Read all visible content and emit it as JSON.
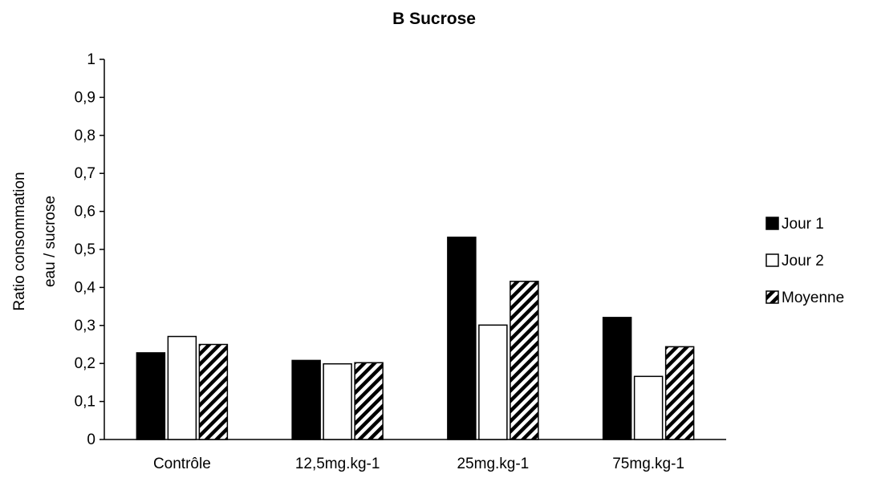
{
  "chart_data": {
    "type": "bar",
    "title": "B Sucrose",
    "ylabel_lines": [
      "Ratio consommation",
      "eau / sucrose"
    ],
    "xlabel": "",
    "categories": [
      "Contrôle",
      "12,5mg.kg-1",
      "25mg.kg-1",
      "75mg.kg-1"
    ],
    "series": [
      {
        "name": "Jour 1",
        "values": [
          0.228,
          0.208,
          0.532,
          0.321
        ],
        "fill": "solid",
        "color": "#000000"
      },
      {
        "name": "Jour 2",
        "values": [
          0.271,
          0.199,
          0.301,
          0.166
        ],
        "fill": "empty",
        "color": "#ffffff"
      },
      {
        "name": "Moyenne",
        "values": [
          0.25,
          0.202,
          0.416,
          0.244
        ],
        "fill": "hatched",
        "color": "#000000"
      }
    ],
    "ylim": [
      0,
      1
    ],
    "yticks": [
      "0",
      "0,1",
      "0,2",
      "0,3",
      "0,4",
      "0,5",
      "0,6",
      "0,7",
      "0,8",
      "0,9",
      "1"
    ],
    "ytick_values": [
      0,
      0.1,
      0.2,
      0.3,
      0.4,
      0.5,
      0.6,
      0.7,
      0.8,
      0.9,
      1
    ],
    "grid": false,
    "legend_position": "right"
  }
}
